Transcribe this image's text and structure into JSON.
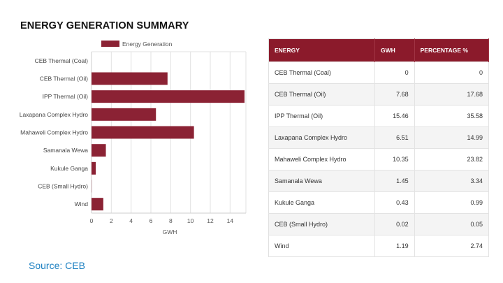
{
  "title": "ENERGY GENERATION SUMMARY",
  "source": "Source: CEB",
  "chart_data": {
    "type": "bar",
    "orientation": "horizontal",
    "categories": [
      "CEB Thermal (Coal)",
      "CEB Thermal (Oil)",
      "IPP Thermal (Oil)",
      "Laxapana Complex Hydro",
      "Mahaweli Complex Hydro",
      "Samanala Wewa",
      "Kukule Ganga",
      "CEB (Small Hydro)",
      "Wind"
    ],
    "series": [
      {
        "name": "Energy Generation",
        "values": [
          0,
          7.68,
          15.46,
          6.51,
          10.35,
          1.45,
          0.43,
          0.02,
          1.19
        ],
        "color": "#8b2234"
      }
    ],
    "xlabel": "GWH",
    "xlim": [
      0,
      15.6
    ],
    "xticks": [
      "0",
      "2",
      "4",
      "6",
      "8",
      "10",
      "12",
      "14"
    ],
    "grid": true,
    "legend": "top"
  },
  "table": {
    "headers": [
      "ENERGY",
      "GWH",
      "PERCENTAGE %"
    ],
    "rows": [
      [
        "CEB Thermal (Coal)",
        "0",
        "0"
      ],
      [
        "CEB Thermal (Oil)",
        "7.68",
        "17.68"
      ],
      [
        "IPP Thermal (Oil)",
        "15.46",
        "35.58"
      ],
      [
        "Laxapana Complex Hydro",
        "6.51",
        "14.99"
      ],
      [
        "Mahaweli Complex Hydro",
        "10.35",
        "23.82"
      ],
      [
        "Samanala Wewa",
        "1.45",
        "3.34"
      ],
      [
        "Kukule Ganga",
        "0.43",
        "0.99"
      ],
      [
        "CEB (Small Hydro)",
        "0.02",
        "0.05"
      ],
      [
        "Wind",
        "1.19",
        "2.74"
      ]
    ]
  }
}
